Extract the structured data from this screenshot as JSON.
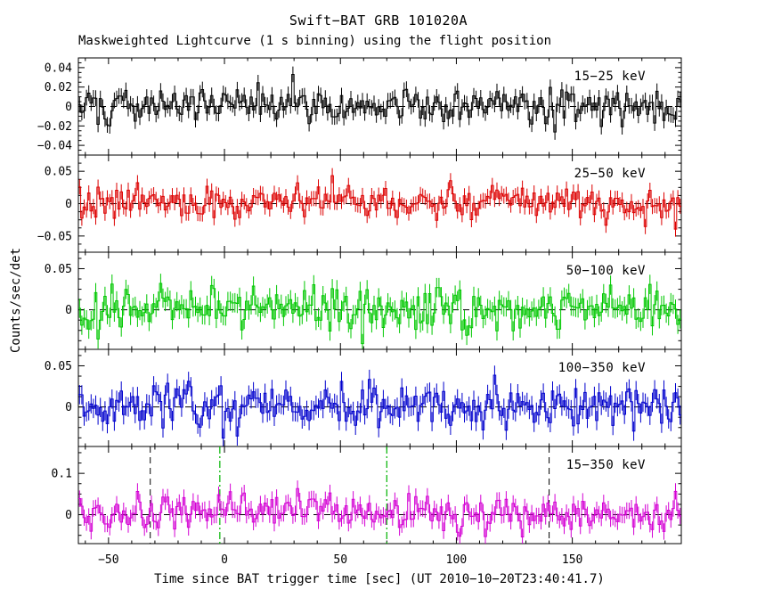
{
  "title": "Swift−BAT GRB 101020A",
  "subtitle": "Maskweighted Lightcurve (1 s binning) using the flight position",
  "xlabel": "Time since BAT trigger time [sec] (UT 2010−10−20T23:40:41.7)",
  "ylabel": "Counts/sec/det",
  "chart_data": {
    "type": "line",
    "style": "histogram-steps-with-errorbars",
    "x_range": [
      -63,
      197
    ],
    "x_ticks": [
      -50,
      0,
      50,
      100,
      150
    ],
    "x_minor_step": 10,
    "bin_seconds": 1,
    "grid": false,
    "zero_line_style": "dashed",
    "panels": [
      {
        "label": "15−25 keV",
        "color": "#000000",
        "ylim": [
          -0.05,
          0.05
        ],
        "yticks": [
          -0.04,
          -0.02,
          0,
          0.02,
          0.04
        ],
        "baseline": 0,
        "noise_sigma": 0.009,
        "burst_amp": 0.004,
        "burst_center": 25,
        "burst_sigma_t": 30,
        "seed": 101
      },
      {
        "label": "25−50 keV",
        "color": "#dd0000",
        "ylim": [
          -0.075,
          0.075
        ],
        "yticks": [
          -0.05,
          0,
          0.05
        ],
        "baseline": 0,
        "noise_sigma": 0.013,
        "burst_amp": 0.006,
        "burst_center": 20,
        "burst_sigma_t": 30,
        "seed": 202
      },
      {
        "label": "50−100 keV",
        "color": "#00c800",
        "ylim": [
          -0.048,
          0.07
        ],
        "yticks": [
          0,
          0.05
        ],
        "baseline": 0,
        "noise_sigma": 0.013,
        "burst_amp": 0.006,
        "burst_center": 15,
        "burst_sigma_t": 30,
        "seed": 303
      },
      {
        "label": "100−350 keV",
        "color": "#0000cd",
        "ylim": [
          -0.048,
          0.07
        ],
        "yticks": [
          0,
          0.05
        ],
        "baseline": 0,
        "noise_sigma": 0.013,
        "burst_amp": 0.002,
        "burst_center": 20,
        "burst_sigma_t": 30,
        "seed": 404
      },
      {
        "label": "15−350 keV",
        "color": "#d400d4",
        "ylim": [
          -0.07,
          0.165
        ],
        "yticks": [
          0,
          0.1
        ],
        "baseline": 0,
        "noise_sigma": 0.022,
        "burst_amp": 0.013,
        "burst_center": 25,
        "burst_sigma_t": 32,
        "seed": 505
      }
    ],
    "annotations": {
      "panel5_black_dashed_vlines": [
        -32,
        140
      ],
      "panel5_green_dashdot_vlines": [
        -2,
        70
      ],
      "green_line_color": "#00b400"
    }
  }
}
